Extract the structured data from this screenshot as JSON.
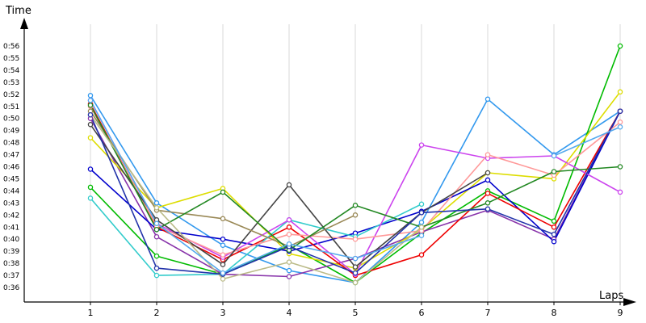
{
  "chart_data": {
    "type": "line",
    "ylabel": "Time",
    "xlabel": "Laps",
    "x": [
      1,
      2,
      3,
      4,
      5,
      6,
      7,
      8,
      9
    ],
    "ylim": [
      35.2,
      57.6
    ],
    "y_ticks": [
      36,
      37,
      38,
      39,
      40,
      41,
      42,
      43,
      44,
      45,
      46,
      47,
      48,
      49,
      50,
      51,
      52,
      53,
      54,
      55,
      56
    ],
    "y_tick_labels": [
      "0:36",
      "0:37",
      "0:38",
      "0:39",
      "0:40",
      "0:41",
      "0:42",
      "0:43",
      "0:44",
      "0:45",
      "0:46",
      "0:47",
      "0:48",
      "0:49",
      "0:50",
      "0:51",
      "0:52",
      "0:53",
      "0:54",
      "0:55",
      "0:56"
    ],
    "grid": "vertical",
    "legend": "none",
    "series": [
      {
        "color": "#3399ee",
        "values": [
          51.9,
          43.0,
          39.5,
          37.4,
          36.4,
          41.4,
          51.6,
          47.0,
          50.6
        ]
      },
      {
        "color": "#00bb00",
        "values": [
          44.3,
          38.6,
          37.1,
          39.5,
          36.4,
          40.5,
          44.0,
          41.5,
          56.0
        ]
      },
      {
        "color": "#8833aa",
        "values": [
          50.0,
          40.2,
          37.1,
          36.9,
          38.4,
          40.6,
          42.4,
          40.0,
          50.6
        ]
      },
      {
        "color": "#dddd00",
        "values": [
          48.4,
          42.6,
          44.2,
          38.8,
          37.6,
          40.8,
          45.5,
          45.0,
          52.2
        ]
      },
      {
        "color": "#0000cc",
        "values": [
          45.8,
          40.8,
          40.0,
          39.0,
          40.5,
          42.3,
          44.9,
          39.8,
          50.6
        ]
      },
      {
        "color": "#ee0000",
        "values": [
          51.2,
          41.0,
          38.3,
          41.0,
          37.0,
          38.7,
          43.8,
          41.0,
          50.6
        ]
      },
      {
        "color": "#33cccc",
        "values": [
          43.4,
          37.0,
          37.1,
          41.6,
          40.2,
          42.9,
          null,
          null,
          null
        ]
      },
      {
        "color": "#cc44ee",
        "values": [
          51.5,
          41.3,
          38.5,
          41.6,
          37.1,
          47.8,
          46.7,
          46.9,
          43.9
        ]
      },
      {
        "color": "#ff9999",
        "values": [
          51.0,
          41.1,
          38.7,
          40.4,
          40.0,
          40.7,
          47.0,
          45.3,
          49.7
        ]
      },
      {
        "color": "#444444",
        "values": [
          49.5,
          41.6,
          37.9,
          44.5,
          37.7,
          42.2,
          45.5,
          null,
          null
        ]
      },
      {
        "color": "#998855",
        "values": [
          50.6,
          42.4,
          41.7,
          39.4,
          42.0,
          null,
          null,
          null,
          null
        ]
      },
      {
        "color": "#228822",
        "values": [
          51.1,
          40.8,
          43.9,
          39.1,
          42.8,
          41.0,
          43.0,
          45.6,
          46.0
        ]
      },
      {
        "color": "#bbbb88",
        "values": [
          50.3,
          42.6,
          36.7,
          38.1,
          36.4,
          41.0,
          null,
          null,
          null
        ]
      },
      {
        "color": "#2233aa",
        "values": [
          50.3,
          37.6,
          37.1,
          39.4,
          37.2,
          42.2,
          42.5,
          40.4,
          50.6
        ]
      },
      {
        "color": "#55aaee",
        "values": [
          51.5,
          41.3,
          37.2,
          39.6,
          38.4,
          40.3,
          null,
          46.9,
          49.3
        ]
      }
    ]
  }
}
